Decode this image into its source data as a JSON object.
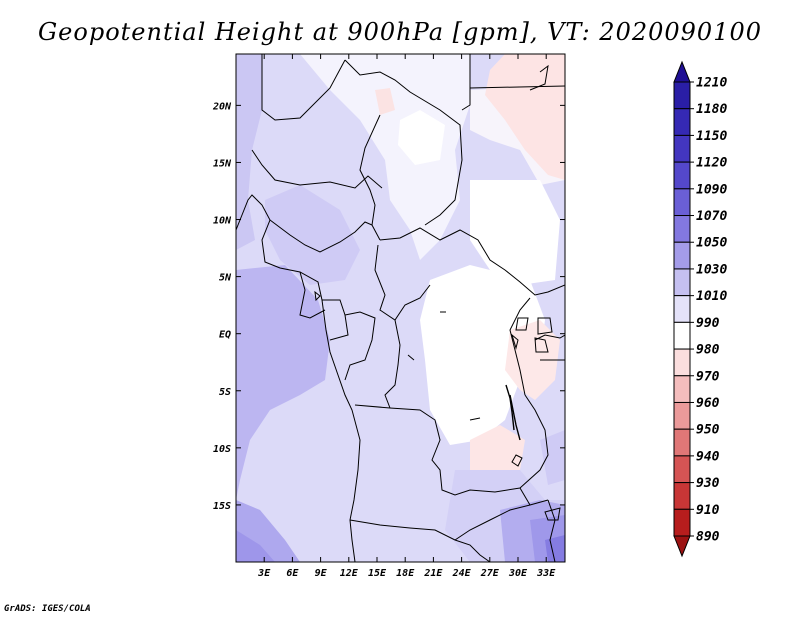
{
  "title": "Geopotential Height at 900hPa [gpm], VT: 2020090100",
  "footer": "GrADS: IGES/COLA",
  "map": {
    "lat_range": [
      -20,
      24.5
    ],
    "lon_range": [
      0,
      35
    ],
    "lat_ticks": [
      "20N",
      "15N",
      "10N",
      "5N",
      "EQ",
      "5S",
      "10S",
      "15S"
    ],
    "lon_ticks": [
      "3E",
      "6E",
      "9E",
      "12E",
      "15E",
      "18E",
      "21E",
      "24E",
      "27E",
      "30E",
      "33E"
    ]
  },
  "colorbar": {
    "labels": [
      "1210",
      "1180",
      "1150",
      "1120",
      "1090",
      "1070",
      "1050",
      "1030",
      "1010",
      "990",
      "980",
      "970",
      "960",
      "950",
      "940",
      "930",
      "910",
      "890"
    ],
    "colors": [
      "#1f0f94",
      "#2a1ea6",
      "#3529b4",
      "#4336c0",
      "#5448cb",
      "#6a5fd6",
      "#8378e0",
      "#a49ce9",
      "#c5c0f1",
      "#e4e2f9",
      "#ffffff",
      "#fbdede",
      "#f4bdbd",
      "#eb9a9a",
      "#e07777",
      "#d55454",
      "#c83636",
      "#b71d1d",
      "#9c1212"
    ]
  }
}
